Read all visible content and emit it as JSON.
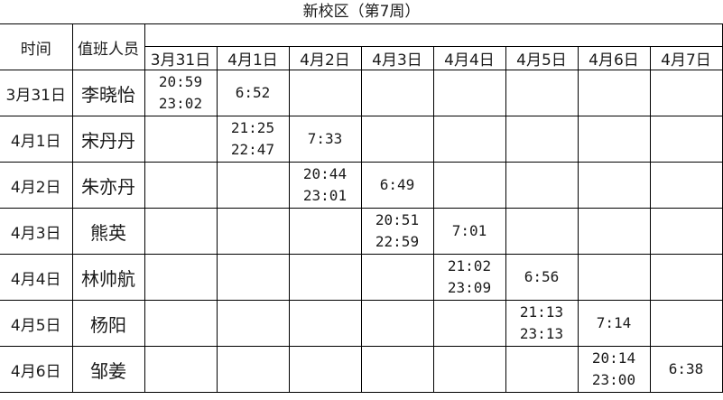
{
  "title": "新校区（第7周）",
  "headers": {
    "time": "时间",
    "staff": "值班人员"
  },
  "dates": [
    "3月31日",
    "4月1日",
    "4月2日",
    "4月3日",
    "4月4日",
    "4月5日",
    "4月6日",
    "4月7日"
  ],
  "rows": [
    {
      "date": "3月31日",
      "name": "李晓怡",
      "cells": [
        [
          "20:59",
          "23:02"
        ],
        [
          "6:52"
        ],
        [],
        [],
        [],
        [],
        [],
        []
      ]
    },
    {
      "date": "4月1日",
      "name": "宋丹丹",
      "cells": [
        [],
        [
          "21:25",
          "22:47"
        ],
        [
          "7:33"
        ],
        [],
        [],
        [],
        [],
        []
      ]
    },
    {
      "date": "4月2日",
      "name": "朱亦丹",
      "cells": [
        [],
        [],
        [
          "20:44",
          "23:01"
        ],
        [
          "6:49"
        ],
        [],
        [],
        [],
        []
      ]
    },
    {
      "date": "4月3日",
      "name": "熊英",
      "cells": [
        [],
        [],
        [],
        [
          "20:51",
          "22:59"
        ],
        [
          "7:01"
        ],
        [],
        [],
        []
      ]
    },
    {
      "date": "4月4日",
      "name": "林帅航",
      "cells": [
        [],
        [],
        [],
        [],
        [
          "21:02",
          "23:09"
        ],
        [
          "6:56"
        ],
        [],
        []
      ]
    },
    {
      "date": "4月5日",
      "name": "杨阳",
      "cells": [
        [],
        [],
        [],
        [],
        [],
        [
          "21:13",
          "23:13"
        ],
        [
          "7:14"
        ],
        []
      ]
    },
    {
      "date": "4月6日",
      "name": "邹姜",
      "cells": [
        [],
        [],
        [],
        [],
        [],
        [],
        [
          "20:14",
          "23:00"
        ],
        [
          "6:38"
        ]
      ]
    }
  ]
}
